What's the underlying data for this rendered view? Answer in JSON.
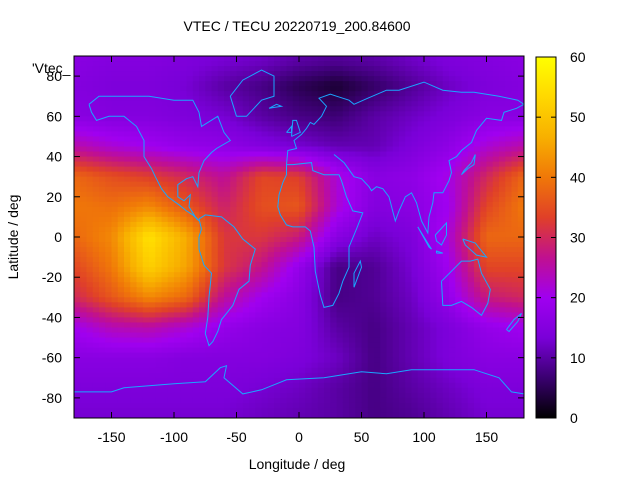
{
  "chart_data": {
    "type": "heatmap",
    "title": "VTEC / TECU 20220719_200.84600",
    "xlabel": "Longitude / deg",
    "ylabel": "Latitude / deg",
    "series_key": "'Vtec_",
    "xlim": [
      -180,
      180
    ],
    "ylim": [
      -90,
      90
    ],
    "x_ticks": [
      "-150",
      "-100",
      "-50",
      "0",
      "50",
      "100",
      "150"
    ],
    "y_ticks": [
      "-80",
      "-60",
      "-40",
      "-20",
      "0",
      "20",
      "40",
      "60",
      "80"
    ],
    "colorbar": {
      "range": [
        0,
        60
      ],
      "ticks": [
        "0",
        "10",
        "20",
        "30",
        "40",
        "50",
        "60"
      ],
      "palette": [
        "#000000",
        "#3a0070",
        "#7a00d8",
        "#a000f0",
        "#c01090",
        "#e04028",
        "#f07808",
        "#f8b000",
        "#ffd800",
        "#ffff00"
      ]
    },
    "vtec_grid": {
      "lon": [
        -180,
        -150,
        -120,
        -90,
        -60,
        -30,
        0,
        30,
        60,
        90,
        120,
        150,
        180
      ],
      "lat": [
        87.5,
        75,
        60,
        45,
        30,
        15,
        0,
        -15,
        -30,
        -45,
        -60,
        -75,
        -87.5
      ],
      "values": [
        [
          16,
          15,
          15,
          14,
          13,
          12,
          10,
          9,
          10,
          12,
          14,
          15,
          16
        ],
        [
          15,
          14,
          14,
          13,
          10,
          8,
          5,
          3,
          6,
          9,
          12,
          14,
          15
        ],
        [
          16,
          15,
          15,
          14,
          13,
          10,
          8,
          7,
          10,
          12,
          14,
          16,
          16
        ],
        [
          25,
          22,
          20,
          18,
          17,
          15,
          13,
          11,
          11,
          14,
          17,
          22,
          25
        ],
        [
          38,
          35,
          33,
          30,
          26,
          34,
          33,
          22,
          16,
          17,
          21,
          30,
          38
        ],
        [
          40,
          39,
          42,
          36,
          29,
          35,
          36,
          22,
          15,
          16,
          20,
          34,
          40
        ],
        [
          38,
          42,
          55,
          46,
          32,
          32,
          28,
          16,
          12,
          14,
          22,
          38,
          38
        ],
        [
          34,
          40,
          52,
          45,
          32,
          27,
          18,
          8,
          9,
          13,
          20,
          34,
          34
        ],
        [
          30,
          36,
          42,
          38,
          26,
          20,
          16,
          8,
          9,
          12,
          18,
          28,
          30
        ],
        [
          20,
          24,
          25,
          22,
          18,
          16,
          15,
          10,
          8,
          11,
          14,
          18,
          20
        ],
        [
          16,
          16,
          16,
          15,
          15,
          15,
          14,
          12,
          8,
          11,
          14,
          16,
          16
        ],
        [
          14,
          14,
          14,
          14,
          14,
          13,
          12,
          10,
          8,
          10,
          12,
          14,
          14
        ],
        [
          13,
          13,
          13,
          13,
          13,
          12,
          11,
          10,
          8,
          9,
          11,
          13,
          13
        ]
      ]
    },
    "coastline_color": "#1aa6ff",
    "grid": false
  }
}
